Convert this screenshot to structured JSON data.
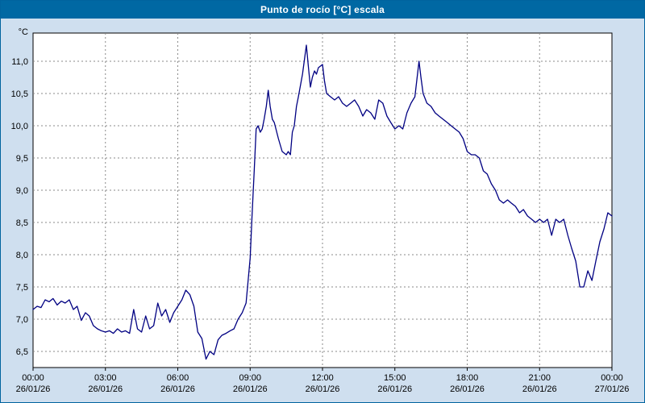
{
  "titlebar": {
    "title": "Punto de rocío [°C] escala"
  },
  "chart_data": {
    "type": "line",
    "title": "Punto de rocío [°C] escala",
    "y_unit_label": "°C",
    "legend_position": "none",
    "grid": true,
    "ylim": [
      6.25,
      11.44
    ],
    "xlim_hours": [
      0,
      24
    ],
    "y_ticks": [
      6.5,
      7.0,
      7.5,
      8.0,
      8.5,
      9.0,
      9.5,
      10.0,
      10.5,
      11.0
    ],
    "y_tick_labels": [
      "6,5",
      "7,0",
      "7,5",
      "8,0",
      "8,5",
      "9,0",
      "9,5",
      "10,0",
      "10,5",
      "11,0"
    ],
    "x_ticks_hours": [
      0,
      3,
      6,
      9,
      12,
      15,
      18,
      21,
      24
    ],
    "x_tick_time_labels": [
      "00:00",
      "03:00",
      "06:00",
      "09:00",
      "12:00",
      "15:00",
      "18:00",
      "21:00",
      "00:00"
    ],
    "x_tick_date_labels": [
      "26/01/26",
      "26/01/26",
      "26/01/26",
      "26/01/26",
      "26/01/26",
      "26/01/26",
      "26/01/26",
      "26/01/26",
      "27/01/26"
    ],
    "colors": {
      "line": "#000082",
      "grid": "#8a8a8a",
      "plot_background": "#ffffff",
      "plot_border": "#000000",
      "outer_background": "#cfdfef",
      "titlebar": "#0068a3",
      "title_text": "#ffffff",
      "axis_text": "#000000"
    },
    "series": [
      {
        "name": "Punto de rocío",
        "x_hours": [
          0,
          0.17,
          0.33,
          0.5,
          0.67,
          0.83,
          1,
          1.17,
          1.33,
          1.5,
          1.67,
          1.83,
          2,
          2.17,
          2.33,
          2.5,
          2.67,
          2.83,
          3,
          3.17,
          3.33,
          3.5,
          3.67,
          3.83,
          4,
          4.17,
          4.33,
          4.5,
          4.67,
          4.83,
          5,
          5.17,
          5.33,
          5.5,
          5.67,
          5.83,
          6,
          6.17,
          6.33,
          6.5,
          6.67,
          6.83,
          7,
          7.17,
          7.33,
          7.5,
          7.67,
          7.83,
          8,
          8.17,
          8.33,
          8.5,
          8.67,
          8.83,
          9,
          9.08,
          9.17,
          9.25,
          9.33,
          9.42,
          9.5,
          9.58,
          9.67,
          9.75,
          9.83,
          9.92,
          10,
          10.17,
          10.33,
          10.5,
          10.58,
          10.67,
          10.75,
          10.83,
          10.92,
          11,
          11.17,
          11.33,
          11.42,
          11.5,
          11.58,
          11.67,
          11.75,
          11.83,
          12,
          12.08,
          12.17,
          12.33,
          12.5,
          12.67,
          12.83,
          13,
          13.17,
          13.33,
          13.5,
          13.67,
          13.83,
          14,
          14.17,
          14.33,
          14.5,
          14.67,
          14.83,
          15,
          15.17,
          15.33,
          15.5,
          15.67,
          15.83,
          16,
          16.08,
          16.17,
          16.33,
          16.5,
          16.67,
          16.83,
          17,
          17.17,
          17.33,
          17.5,
          17.67,
          17.83,
          18,
          18.17,
          18.33,
          18.5,
          18.67,
          18.83,
          19,
          19.17,
          19.33,
          19.5,
          19.67,
          19.83,
          20,
          20.17,
          20.33,
          20.5,
          20.67,
          20.83,
          21,
          21.17,
          21.33,
          21.5,
          21.67,
          21.83,
          22,
          22.17,
          22.33,
          22.5,
          22.67,
          22.83,
          23,
          23.17,
          23.33,
          23.5,
          23.67,
          23.83,
          24
        ],
        "y_values": [
          7.15,
          7.2,
          7.18,
          7.3,
          7.27,
          7.32,
          7.22,
          7.28,
          7.25,
          7.3,
          7.15,
          7.2,
          6.98,
          7.1,
          7.05,
          6.9,
          6.85,
          6.82,
          6.8,
          6.82,
          6.78,
          6.85,
          6.8,
          6.82,
          6.78,
          7.15,
          6.85,
          6.8,
          7.05,
          6.85,
          6.9,
          7.25,
          7.05,
          7.15,
          6.95,
          7.1,
          7.2,
          7.3,
          7.45,
          7.38,
          7.2,
          6.8,
          6.7,
          6.38,
          6.5,
          6.45,
          6.68,
          6.75,
          6.78,
          6.82,
          6.85,
          7.0,
          7.1,
          7.25,
          7.95,
          8.6,
          9.3,
          9.95,
          10.0,
          9.9,
          9.95,
          10.1,
          10.3,
          10.55,
          10.3,
          10.1,
          10.05,
          9.8,
          9.6,
          9.55,
          9.6,
          9.55,
          9.9,
          10.0,
          10.3,
          10.45,
          10.8,
          11.25,
          10.9,
          10.6,
          10.75,
          10.85,
          10.8,
          10.9,
          10.95,
          10.7,
          10.5,
          10.45,
          10.4,
          10.45,
          10.35,
          10.3,
          10.35,
          10.4,
          10.3,
          10.15,
          10.25,
          10.2,
          10.1,
          10.4,
          10.35,
          10.15,
          10.05,
          9.95,
          10.0,
          9.95,
          10.2,
          10.35,
          10.45,
          11.0,
          10.75,
          10.5,
          10.35,
          10.3,
          10.2,
          10.15,
          10.1,
          10.05,
          10.0,
          9.95,
          9.9,
          9.8,
          9.6,
          9.55,
          9.55,
          9.5,
          9.3,
          9.25,
          9.1,
          9.0,
          8.85,
          8.8,
          8.85,
          8.8,
          8.75,
          8.65,
          8.7,
          8.6,
          8.55,
          8.5,
          8.55,
          8.5,
          8.55,
          8.3,
          8.55,
          8.5,
          8.55,
          8.3,
          8.1,
          7.9,
          7.5,
          7.5,
          7.75,
          7.6,
          7.9,
          8.2,
          8.4,
          8.65,
          8.6
        ]
      }
    ]
  }
}
